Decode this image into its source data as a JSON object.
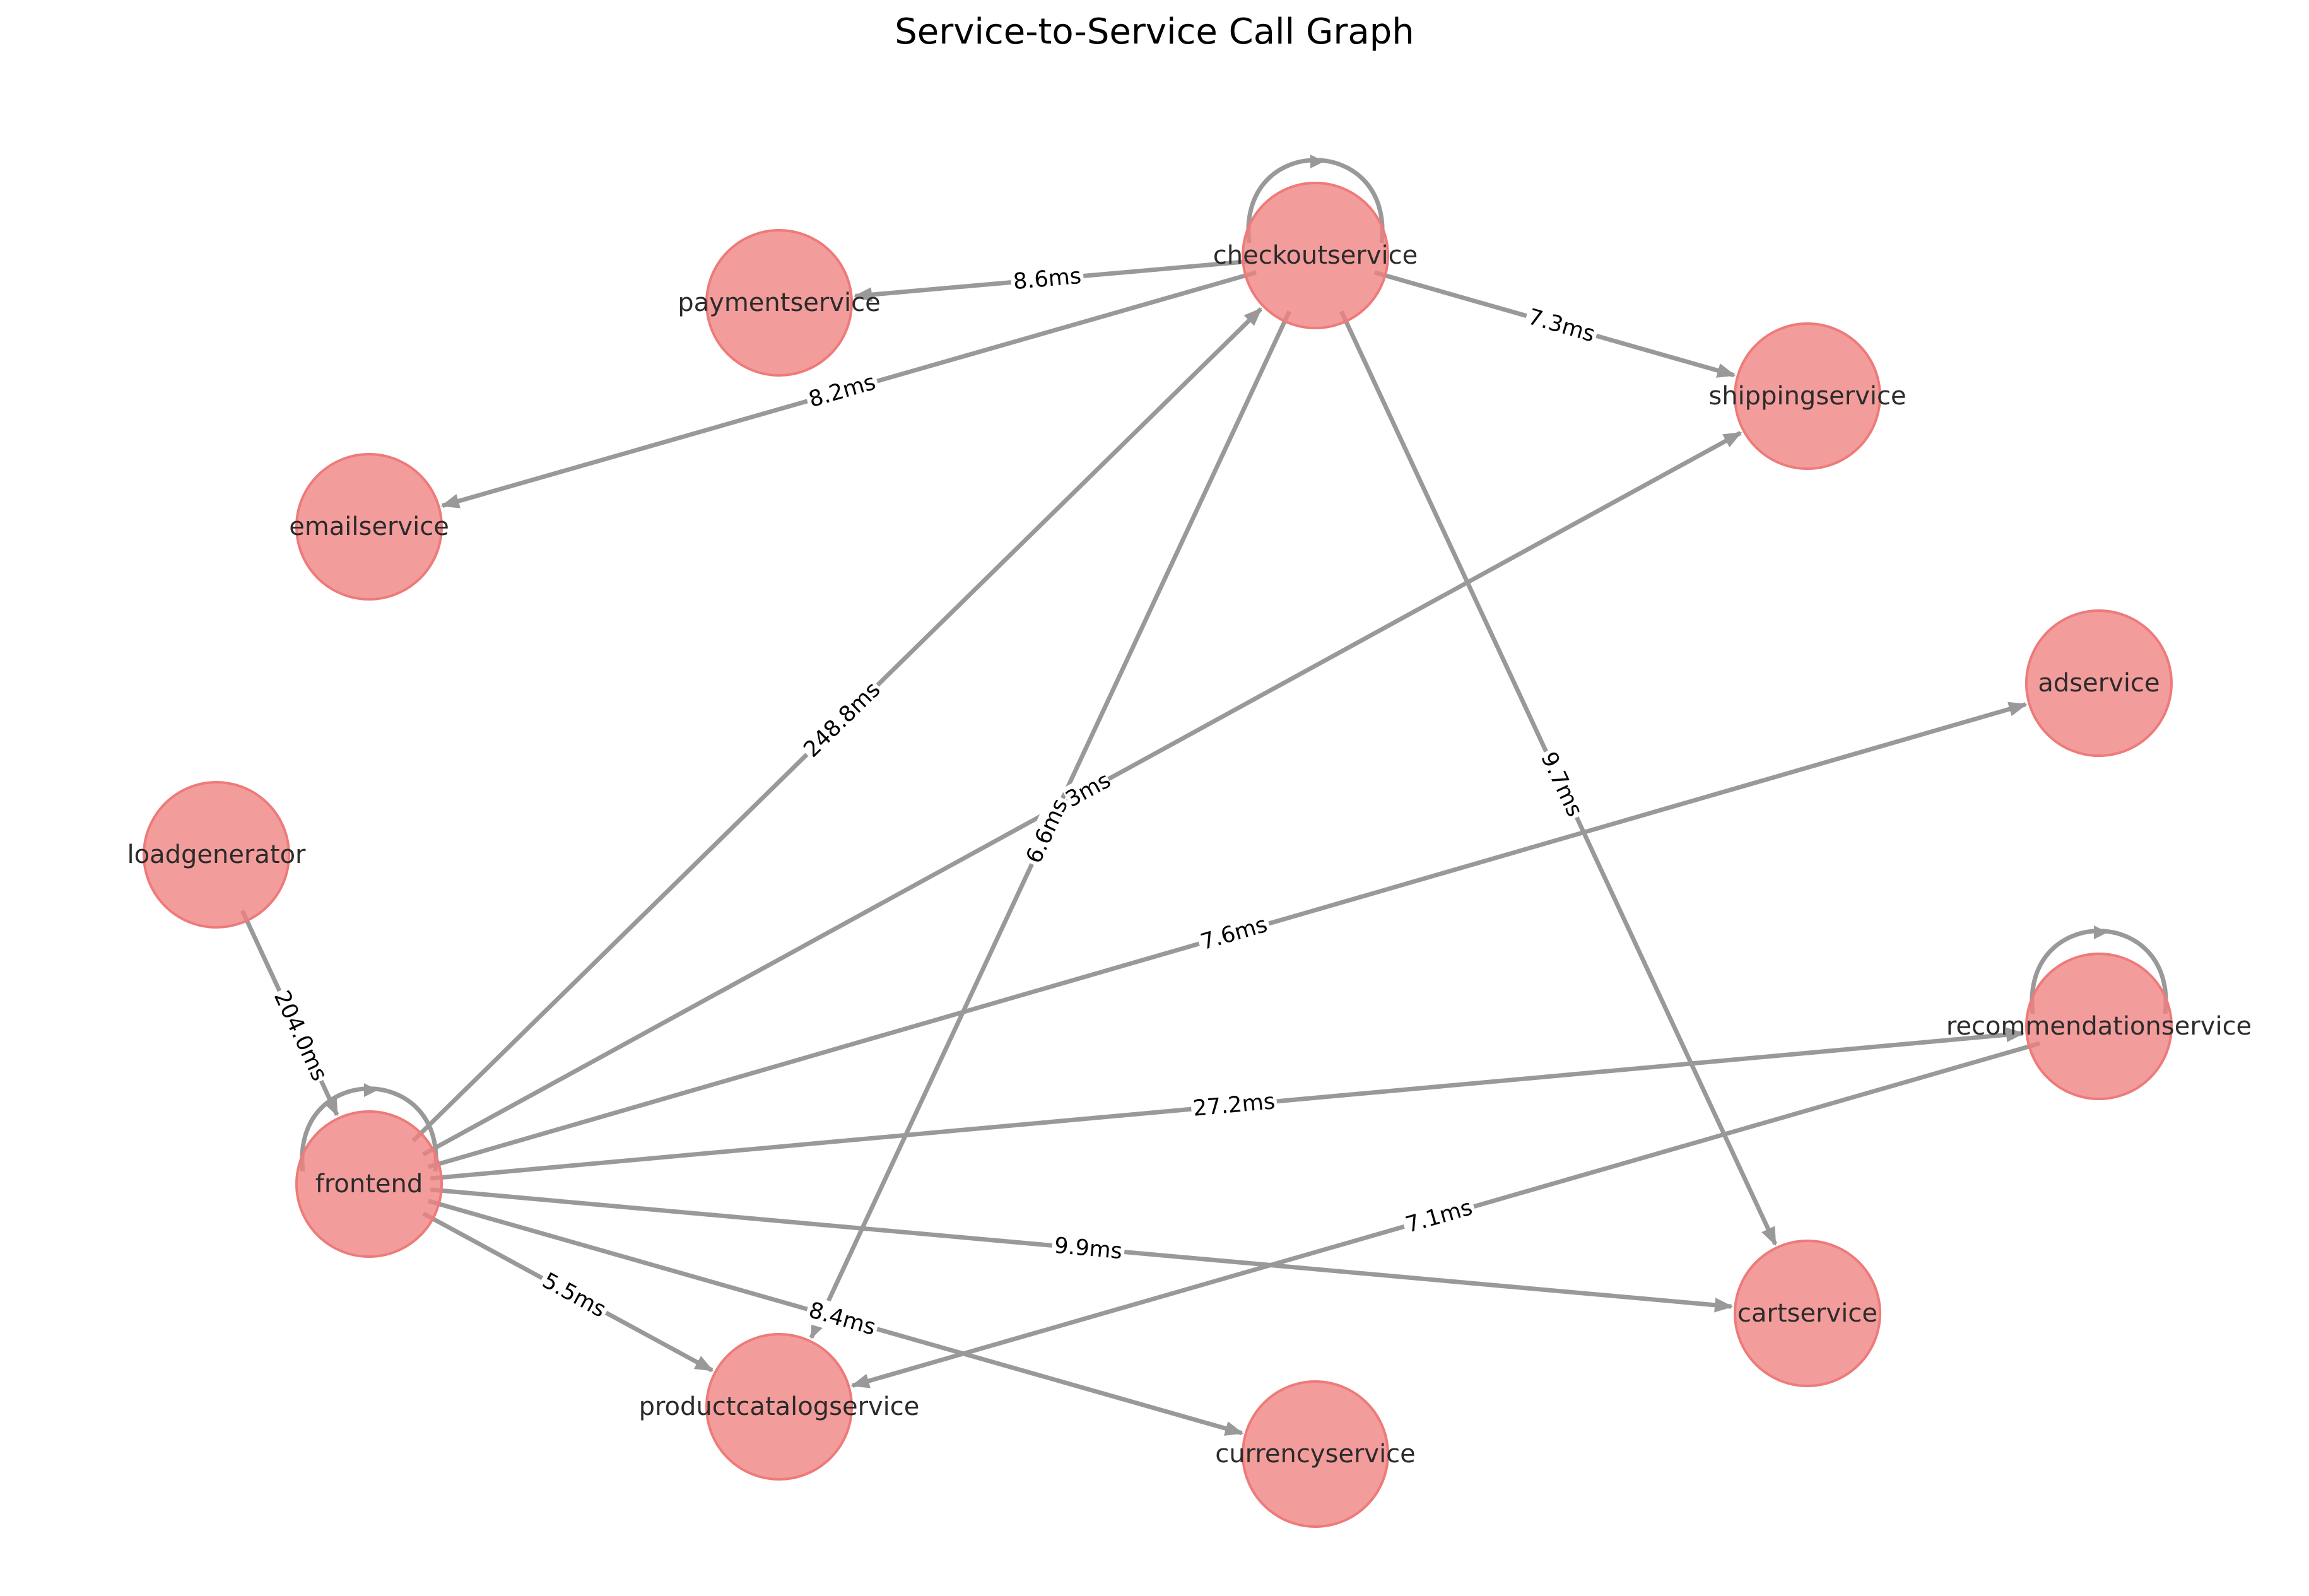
{
  "title": "Service-to-Service Call Graph",
  "colors": {
    "node": "#f08080",
    "edge": "#999999"
  },
  "nodes": [
    {
      "id": "checkoutservice",
      "label": "checkoutservice"
    },
    {
      "id": "paymentservice",
      "label": "paymentservice"
    },
    {
      "id": "shippingservice",
      "label": "shippingservice"
    },
    {
      "id": "emailservice",
      "label": "emailservice"
    },
    {
      "id": "adservice",
      "label": "adservice"
    },
    {
      "id": "loadgenerator",
      "label": "loadgenerator"
    },
    {
      "id": "recommendationservice",
      "label": "recommendationservice"
    },
    {
      "id": "frontend",
      "label": "frontend"
    },
    {
      "id": "cartservice",
      "label": "cartservice"
    },
    {
      "id": "productcatalogservice",
      "label": "productcatalogservice"
    },
    {
      "id": "currencyservice",
      "label": "currencyservice"
    }
  ],
  "edges": [
    {
      "source": "checkoutservice",
      "target": "paymentservice",
      "label": "8.6ms"
    },
    {
      "source": "checkoutservice",
      "target": "emailservice",
      "label": "8.2ms"
    },
    {
      "source": "checkoutservice",
      "target": "shippingservice",
      "label": "7.3ms"
    },
    {
      "source": "checkoutservice",
      "target": "cartservice",
      "label": "9.7ms"
    },
    {
      "source": "checkoutservice",
      "target": "productcatalogservice",
      "label": "6.6ms"
    },
    {
      "source": "checkoutservice",
      "target": "checkoutservice",
      "label": ""
    },
    {
      "source": "loadgenerator",
      "target": "frontend",
      "label": "204.0ms"
    },
    {
      "source": "frontend",
      "target": "frontend",
      "label": ""
    },
    {
      "source": "frontend",
      "target": "checkoutservice",
      "label": "248.8ms"
    },
    {
      "source": "frontend",
      "target": "shippingservice",
      "label": "3ms"
    },
    {
      "source": "frontend",
      "target": "adservice",
      "label": "7.6ms"
    },
    {
      "source": "frontend",
      "target": "recommendationservice",
      "label": "27.2ms"
    },
    {
      "source": "frontend",
      "target": "cartservice",
      "label": "9.9ms"
    },
    {
      "source": "frontend",
      "target": "productcatalogservice",
      "label": "5.5ms"
    },
    {
      "source": "frontend",
      "target": "currencyservice",
      "label": "8.4ms"
    },
    {
      "source": "recommendationservice",
      "target": "productcatalogservice",
      "label": "7.1ms"
    },
    {
      "source": "recommendationservice",
      "target": "recommendationservice",
      "label": ""
    }
  ]
}
